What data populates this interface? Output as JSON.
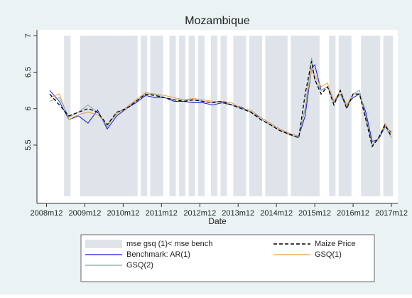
{
  "chart_data": {
    "type": "line",
    "title": "Mozambique",
    "x_label": "Date",
    "xlim": [
      584,
      697
    ],
    "xticks": [
      {
        "value": 587,
        "label": "2008m12"
      },
      {
        "value": 599,
        "label": "2009m12"
      },
      {
        "value": 611,
        "label": "2010m12"
      },
      {
        "value": 623,
        "label": "2011m12"
      },
      {
        "value": 635,
        "label": "2012m12"
      },
      {
        "value": 647,
        "label": "2013m12"
      },
      {
        "value": 659,
        "label": "2014m12"
      },
      {
        "value": 671,
        "label": "2015m12"
      },
      {
        "value": 683,
        "label": "2016m12"
      },
      {
        "value": 695,
        "label": "2017m12"
      }
    ],
    "ylim": [
      4.7,
      7.08
    ],
    "yticks": [
      5.5,
      6,
      6.5,
      7
    ],
    "grid": false,
    "x": [
      588,
      591,
      594,
      597,
      600,
      603,
      606,
      609,
      612,
      615,
      618,
      621,
      624,
      627,
      630,
      633,
      636,
      639,
      642,
      645,
      648,
      651,
      654,
      657,
      660,
      663,
      666,
      668,
      670,
      671,
      673,
      675,
      677,
      679,
      681,
      683,
      685,
      687,
      689,
      691,
      693,
      695
    ],
    "shade": {
      "name": "mse gsq (1)< mse bench",
      "color": "#dfe3ea",
      "periods": [
        [
          593,
          594
        ],
        [
          598,
          606
        ],
        [
          607,
          608
        ],
        [
          609,
          611
        ],
        [
          612,
          613
        ],
        [
          614,
          615
        ],
        [
          617,
          618
        ],
        [
          620,
          621
        ],
        [
          622,
          623
        ],
        [
          626,
          627
        ],
        [
          629,
          630
        ],
        [
          632,
          633
        ],
        [
          635,
          636
        ],
        [
          639,
          640
        ],
        [
          642,
          643
        ],
        [
          646,
          647
        ],
        [
          648,
          649
        ],
        [
          651,
          652
        ],
        [
          653,
          654
        ],
        [
          656,
          660
        ],
        [
          661,
          662
        ],
        [
          664,
          672
        ],
        [
          676,
          677
        ],
        [
          679,
          680
        ],
        [
          681,
          682
        ],
        [
          686,
          689
        ],
        [
          690,
          691
        ],
        [
          693,
          695
        ]
      ]
    },
    "series": [
      {
        "name": "Maize Price",
        "color": "#000000",
        "dashed": true,
        "values": [
          6.2,
          6.05,
          5.9,
          5.95,
          6.0,
          5.95,
          5.78,
          5.95,
          6.0,
          6.1,
          6.2,
          6.18,
          6.15,
          6.12,
          6.1,
          6.12,
          6.1,
          6.08,
          6.1,
          6.05,
          6.0,
          5.95,
          5.85,
          5.78,
          5.7,
          5.65,
          5.6,
          6.2,
          6.65,
          6.4,
          6.2,
          6.3,
          6.05,
          6.25,
          6.0,
          6.2,
          6.2,
          5.85,
          5.48,
          5.6,
          5.78,
          5.62
        ]
      },
      {
        "name": "Benchmark: AR(1)",
        "color": "#1a1ad8",
        "dashed": false,
        "values": [
          6.25,
          6.1,
          5.85,
          5.9,
          5.8,
          5.98,
          5.72,
          5.9,
          6.0,
          6.08,
          6.18,
          6.15,
          6.15,
          6.1,
          6.1,
          6.08,
          6.08,
          6.05,
          6.08,
          6.05,
          6.02,
          5.95,
          5.88,
          5.8,
          5.72,
          5.66,
          5.62,
          5.9,
          6.55,
          6.6,
          6.25,
          6.3,
          6.1,
          6.2,
          6.05,
          6.15,
          6.2,
          5.95,
          5.55,
          5.58,
          5.75,
          5.68
        ]
      },
      {
        "name": "GSQ(1)",
        "color": "#e8a040",
        "dashed": false,
        "values": [
          6.15,
          6.2,
          5.85,
          5.92,
          5.95,
          5.92,
          5.78,
          5.92,
          6.02,
          6.12,
          6.22,
          6.2,
          6.18,
          6.15,
          6.12,
          6.14,
          6.12,
          6.1,
          6.1,
          6.08,
          6.0,
          5.98,
          5.88,
          5.8,
          5.72,
          5.66,
          5.62,
          6.0,
          6.55,
          6.45,
          6.3,
          6.35,
          6.1,
          6.25,
          6.05,
          6.2,
          6.2,
          5.9,
          5.5,
          5.58,
          5.8,
          5.65
        ]
      },
      {
        "name": "GSQ(2)",
        "color": "#7fa8a0",
        "dashed": false,
        "values": [
          6.1,
          6.15,
          5.88,
          5.95,
          6.05,
          5.95,
          5.75,
          5.95,
          6.0,
          6.1,
          6.2,
          6.2,
          6.15,
          6.12,
          6.12,
          6.12,
          6.1,
          6.08,
          6.1,
          6.05,
          6.0,
          5.96,
          5.86,
          5.78,
          5.7,
          5.64,
          5.6,
          6.0,
          6.7,
          6.4,
          6.25,
          6.3,
          6.08,
          6.2,
          6.0,
          6.2,
          6.25,
          5.88,
          5.5,
          5.6,
          5.76,
          5.6
        ]
      }
    ]
  }
}
